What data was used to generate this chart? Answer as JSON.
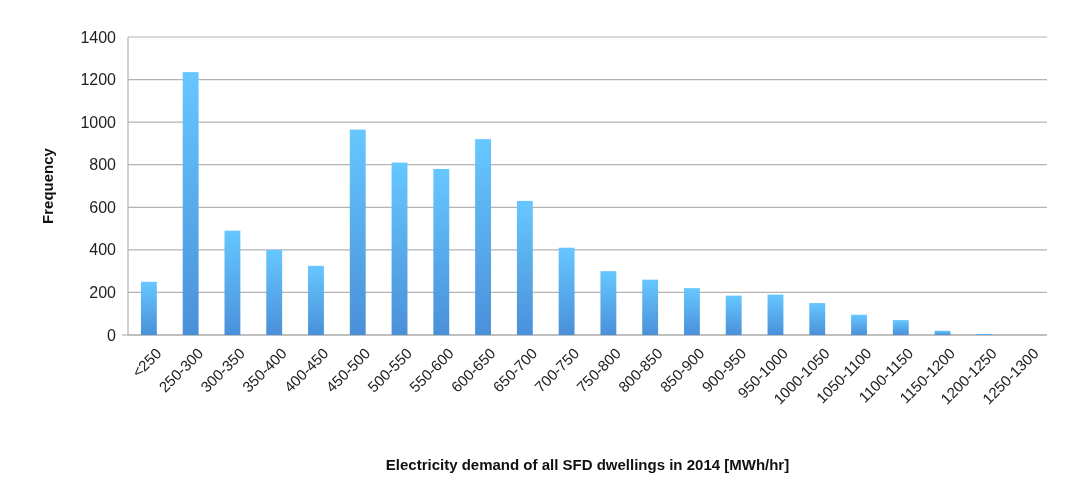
{
  "chart_data": {
    "type": "bar",
    "xlabel": "Electricity demand of all SFD dwellings in 2014 [MWh/hr]",
    "ylabel": "Frequency",
    "categories": [
      "<250",
      "250-300",
      "300-350",
      "350-400",
      "400-450",
      "450-500",
      "500-550",
      "550-600",
      "600-650",
      "650-700",
      "700-750",
      "750-800",
      "800-850",
      "850-900",
      "900-950",
      "950-1000",
      "1000-1050",
      "1050-1100",
      "1100-1150",
      "1150-1200",
      "1200-1250",
      "1250-1300"
    ],
    "values": [
      250,
      1235,
      490,
      400,
      325,
      965,
      810,
      780,
      920,
      630,
      410,
      300,
      260,
      220,
      185,
      190,
      150,
      95,
      70,
      20,
      5,
      0
    ],
    "color": "#4a90d9",
    "ylim": [
      0,
      1400
    ],
    "yticks": [
      0,
      200,
      400,
      600,
      800,
      1000,
      1200,
      1400
    ],
    "grid": "y"
  }
}
